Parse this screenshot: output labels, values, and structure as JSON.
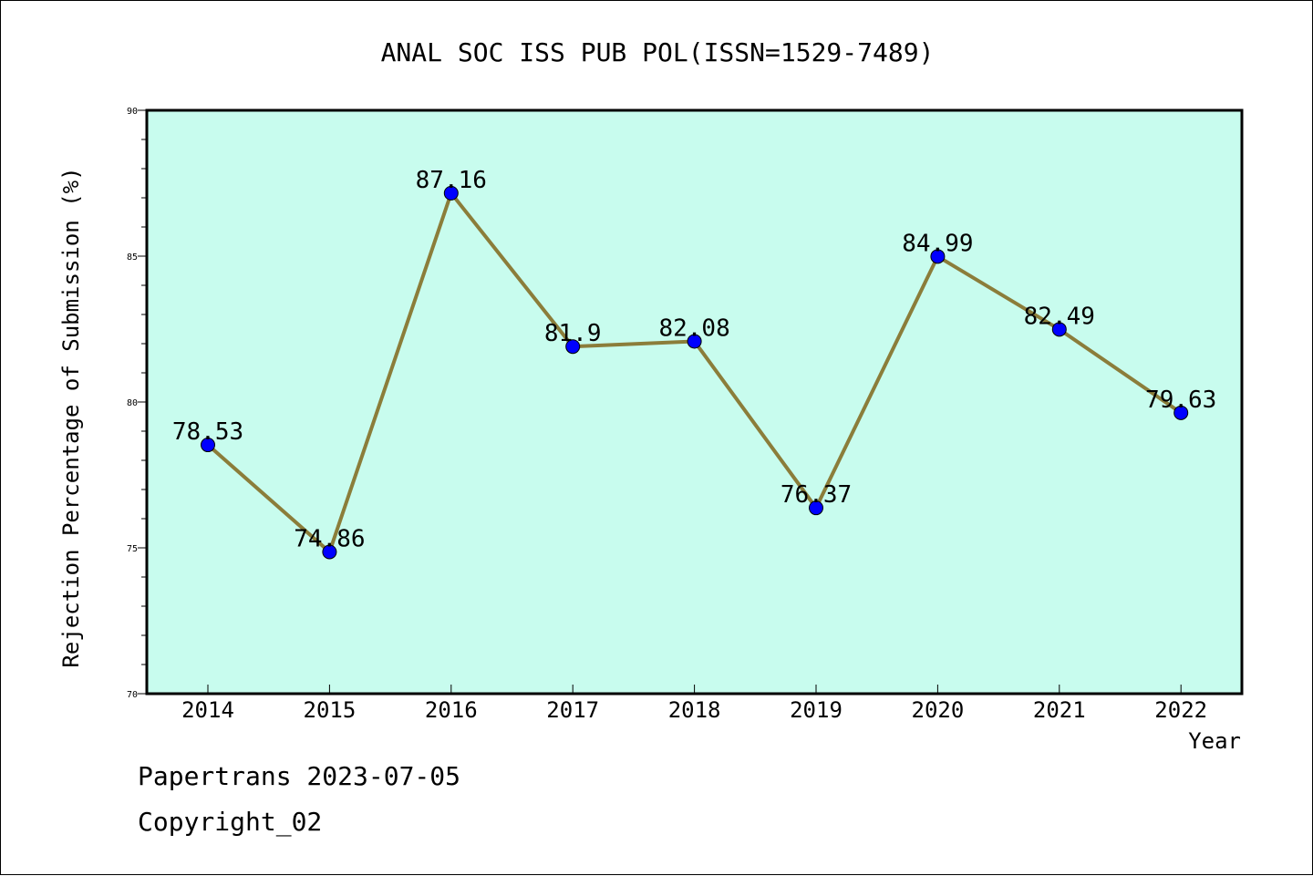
{
  "chart_data": {
    "type": "line",
    "title": "ANAL SOC ISS PUB POL(ISSN=1529-7489)",
    "xlabel": "Year",
    "ylabel": "Rejection Percentage of Submission (%)",
    "categories": [
      "2014",
      "2015",
      "2016",
      "2017",
      "2018",
      "2019",
      "2020",
      "2021",
      "2022"
    ],
    "values": [
      78.53,
      74.86,
      87.16,
      81.9,
      82.08,
      76.37,
      84.99,
      82.49,
      79.63
    ],
    "data_labels": [
      "78.53",
      "74.86",
      "87.16",
      "81.9",
      "82.08",
      "76.37",
      "84.99",
      "82.49",
      "79.63"
    ],
    "ylim": [
      70,
      90
    ],
    "yticks": [
      "70",
      "75",
      "80",
      "85",
      "90"
    ],
    "grid": false,
    "colors": {
      "plot_background": "#c8fcee",
      "line": "#8b7d3a",
      "marker": "#0000ff"
    }
  },
  "footer": {
    "line1": "Papertrans 2023-07-05",
    "line2": "Copyright_02"
  }
}
